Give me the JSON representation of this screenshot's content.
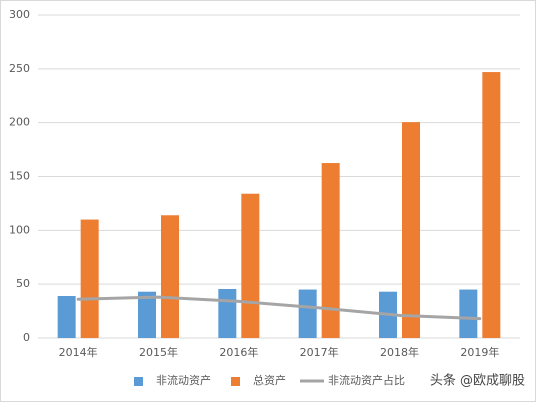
{
  "chart_data": {
    "type": "bar",
    "categories": [
      "2014年",
      "2015年",
      "2016年",
      "2017年",
      "2018年",
      "2019年"
    ],
    "series": [
      {
        "name": "非流动资产",
        "type": "bar",
        "color": "#5b9bd5",
        "values": [
          39,
          43,
          45.5,
          45,
          43,
          45
        ]
      },
      {
        "name": "总资产",
        "type": "bar",
        "color": "#ed7d31",
        "values": [
          110,
          114,
          134,
          162.5,
          200.5,
          247
        ]
      },
      {
        "name": "非流动资产占比",
        "type": "line",
        "color": "#a5a5a5",
        "values": [
          36,
          38,
          34,
          28,
          21,
          18
        ]
      }
    ],
    "ylim": [
      0,
      300
    ],
    "yticks": [
      0,
      50,
      100,
      150,
      200,
      250,
      300
    ],
    "grid": true,
    "legend": "bottom",
    "watermark": "头条 @欧成聊股"
  }
}
